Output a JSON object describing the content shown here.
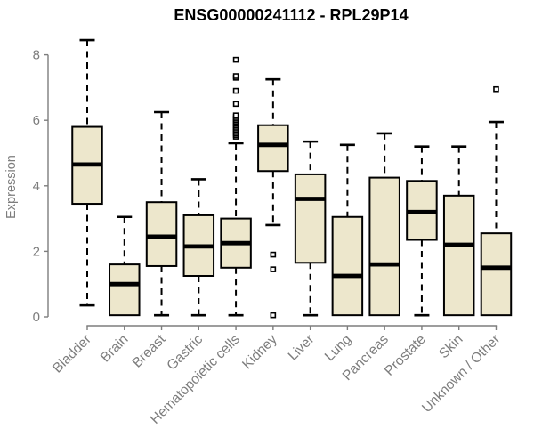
{
  "chart_data": {
    "type": "boxplot",
    "title": "ENSG00000241112 - RPL29P14",
    "xlabel": "",
    "ylabel": "Expression",
    "ylim": [
      0,
      8.6
    ],
    "yticks": [
      0,
      2,
      4,
      6,
      8
    ],
    "grid": false,
    "legend": "none",
    "categories": [
      "Bladder",
      "Brain",
      "Breast",
      "Gastric",
      "Hematopoietic cells",
      "Kidney",
      "Liver",
      "Lung",
      "Pancreas",
      "Prostate",
      "Skin",
      "Unknown / Other"
    ],
    "series": [
      {
        "name": "Bladder",
        "whisker_low": 0.35,
        "q1": 3.45,
        "median": 4.65,
        "q3": 5.8,
        "whisker_high": 8.45,
        "outliers": []
      },
      {
        "name": "Brain",
        "whisker_low": 0.05,
        "q1": 0.05,
        "median": 1.0,
        "q3": 1.6,
        "whisker_high": 3.05,
        "outliers": []
      },
      {
        "name": "Breast",
        "whisker_low": 0.05,
        "q1": 1.55,
        "median": 2.45,
        "q3": 3.5,
        "whisker_high": 6.25,
        "outliers": []
      },
      {
        "name": "Gastric",
        "whisker_low": 0.05,
        "q1": 1.25,
        "median": 2.15,
        "q3": 3.1,
        "whisker_high": 4.2,
        "outliers": []
      },
      {
        "name": "Hematopoietic cells",
        "whisker_low": 0.05,
        "q1": 1.5,
        "median": 2.25,
        "q3": 3.0,
        "whisker_high": 5.3,
        "outliers": [
          5.5,
          5.55,
          5.6,
          5.65,
          5.7,
          5.75,
          5.8,
          5.85,
          5.9,
          5.95,
          6.0,
          6.05,
          6.1,
          6.15,
          6.5,
          6.9,
          7.3,
          7.35,
          7.85
        ]
      },
      {
        "name": "Kidney",
        "whisker_low": 2.8,
        "q1": 4.45,
        "median": 5.25,
        "q3": 5.85,
        "whisker_high": 7.25,
        "outliers": [
          1.9,
          1.45,
          0.05
        ]
      },
      {
        "name": "Liver",
        "whisker_low": 0.05,
        "q1": 1.65,
        "median": 3.6,
        "q3": 4.35,
        "whisker_high": 5.35,
        "outliers": []
      },
      {
        "name": "Lung",
        "whisker_low": 0.05,
        "q1": 0.05,
        "median": 1.25,
        "q3": 3.05,
        "whisker_high": 5.25,
        "outliers": []
      },
      {
        "name": "Pancreas",
        "whisker_low": 0.05,
        "q1": 0.05,
        "median": 1.6,
        "q3": 4.25,
        "whisker_high": 5.6,
        "outliers": []
      },
      {
        "name": "Prostate",
        "whisker_low": 0.05,
        "q1": 2.35,
        "median": 3.2,
        "q3": 4.15,
        "whisker_high": 5.2,
        "outliers": []
      },
      {
        "name": "Skin",
        "whisker_low": 0.05,
        "q1": 0.05,
        "median": 2.2,
        "q3": 3.7,
        "whisker_high": 5.2,
        "outliers": []
      },
      {
        "name": "Unknown / Other",
        "whisker_low": 0.05,
        "q1": 0.05,
        "median": 1.5,
        "q3": 2.55,
        "whisker_high": 5.95,
        "outliers": [
          6.95
        ]
      }
    ],
    "colors": {
      "box_fill": "#EDE7CC",
      "box_border": "#000000",
      "median": "#000000",
      "whisker": "#000000",
      "axis": "#7D7D7D",
      "tick_label": "#7D7D7D",
      "title": "#000000",
      "background": "#FFFFFF"
    }
  }
}
